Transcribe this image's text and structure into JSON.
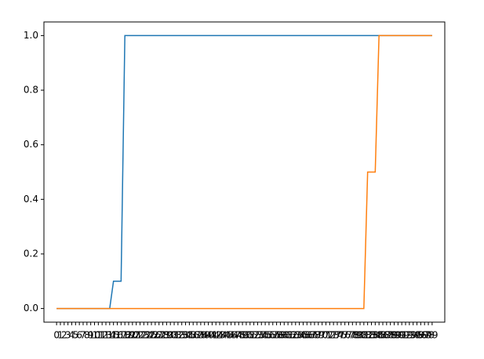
{
  "chart_data": {
    "type": "line",
    "categories": [
      "0",
      "1",
      "2",
      "3",
      "4",
      "5",
      "6",
      "7",
      "8",
      "9",
      "10",
      "11",
      "12",
      "13",
      "14",
      "15",
      "16",
      "17",
      "18",
      "19",
      "20",
      "21",
      "22",
      "23",
      "24",
      "25",
      "26",
      "27",
      "28",
      "29",
      "30",
      "31",
      "32",
      "33",
      "34",
      "35",
      "36",
      "37",
      "38",
      "39",
      "40",
      "41",
      "42",
      "43",
      "44",
      "45",
      "46",
      "47",
      "48",
      "49",
      "50",
      "51",
      "52",
      "53",
      "54",
      "55",
      "56",
      "57",
      "58",
      "59",
      "60",
      "61",
      "62",
      "63",
      "64",
      "65",
      "66",
      "67",
      "68",
      "69",
      "70",
      "71",
      "72",
      "73",
      "74",
      "75",
      "76",
      "77",
      "78",
      "79",
      "80",
      "81",
      "82",
      "83",
      "84",
      "85",
      "86",
      "87",
      "88",
      "89",
      "90",
      "91",
      "92",
      "93",
      "94",
      "95",
      "96",
      "97",
      "98",
      "99"
    ],
    "series": [
      {
        "color": "#1f77b4",
        "values": [
          0,
          0,
          0,
          0,
          0,
          0,
          0,
          0,
          0,
          0,
          0,
          0,
          0,
          0,
          0,
          0.1,
          0.1,
          0.1,
          1,
          1,
          1,
          1,
          1,
          1,
          1,
          1,
          1,
          1,
          1,
          1,
          1,
          1,
          1,
          1,
          1,
          1,
          1,
          1,
          1,
          1,
          1,
          1,
          1,
          1,
          1,
          1,
          1,
          1,
          1,
          1,
          1,
          1,
          1,
          1,
          1,
          1,
          1,
          1,
          1,
          1,
          1,
          1,
          1,
          1,
          1,
          1,
          1,
          1,
          1,
          1,
          1,
          1,
          1,
          1,
          1,
          1,
          1,
          1,
          1,
          1,
          1,
          1,
          1,
          1,
          1,
          1,
          1,
          1,
          1,
          1,
          1,
          1,
          1,
          1,
          1,
          1,
          1,
          1,
          1,
          1
        ]
      },
      {
        "color": "#ff7f0e",
        "values": [
          0,
          0,
          0,
          0,
          0,
          0,
          0,
          0,
          0,
          0,
          0,
          0,
          0,
          0,
          0,
          0,
          0,
          0,
          0,
          0,
          0,
          0,
          0,
          0,
          0,
          0,
          0,
          0,
          0,
          0,
          0,
          0,
          0,
          0,
          0,
          0,
          0,
          0,
          0,
          0,
          0,
          0,
          0,
          0,
          0,
          0,
          0,
          0,
          0,
          0,
          0,
          0,
          0,
          0,
          0,
          0,
          0,
          0,
          0,
          0,
          0,
          0,
          0,
          0,
          0,
          0,
          0,
          0,
          0,
          0,
          0,
          0,
          0,
          0,
          0,
          0,
          0,
          0,
          0,
          0,
          0,
          0,
          0.5,
          0.5,
          0.5,
          1,
          1,
          1,
          1,
          1,
          1,
          1,
          1,
          1,
          1,
          1,
          1,
          1,
          1,
          1
        ]
      }
    ],
    "ylim": [
      -0.05,
      1.05
    ],
    "yticks": [
      {
        "value": 0,
        "label": "0.0"
      },
      {
        "value": 0.2,
        "label": "0.2"
      },
      {
        "value": 0.4,
        "label": "0.4"
      },
      {
        "value": 0.6,
        "label": "0.6"
      },
      {
        "value": 0.8,
        "label": "0.8"
      },
      {
        "value": 1,
        "label": "1.0"
      }
    ],
    "grid": false
  }
}
